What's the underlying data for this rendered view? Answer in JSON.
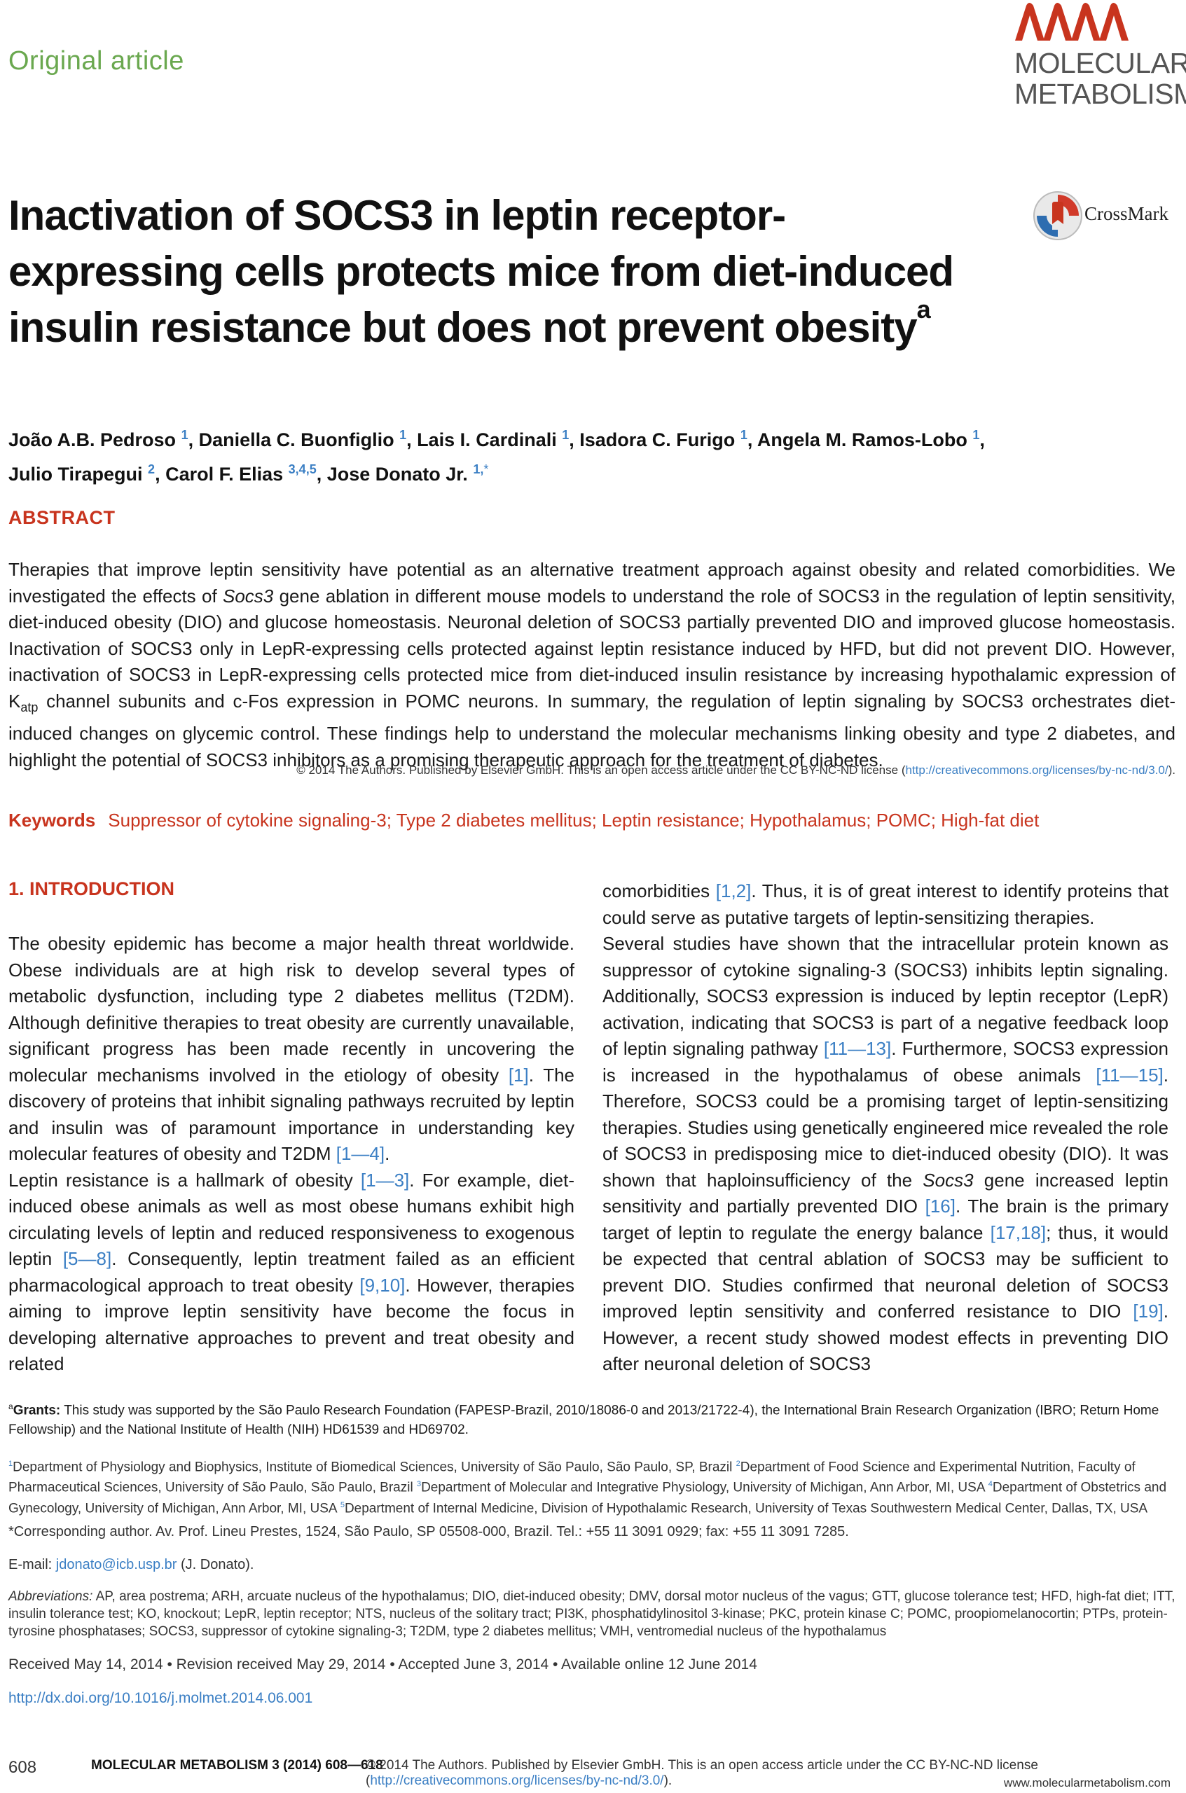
{
  "header": {
    "doc_type": "Original article",
    "journal_line1": "MOLECULAR",
    "journal_line2": "METABOLISM",
    "crossmark_label": "CrossMark",
    "colors": {
      "accent_red": "#c8341e",
      "link_blue": "#3b7fc4",
      "doc_type_green": "#6aa84f"
    }
  },
  "title": {
    "line1": "Inactivation of SOCS3 in leptin receptor-",
    "line2": "expressing cells protects mice from diet-induced",
    "line3": "insulin resistance but does not prevent obesity",
    "marker": "a"
  },
  "authors": [
    {
      "name": "João A.B. Pedroso",
      "aff": "1"
    },
    {
      "name": "Daniella C. Buonfiglio",
      "aff": "1"
    },
    {
      "name": "Lais I. Cardinali",
      "aff": "1"
    },
    {
      "name": "Isadora C. Furigo",
      "aff": "1"
    },
    {
      "name": "Angela M. Ramos-Lobo",
      "aff": "1"
    },
    {
      "name": "Julio Tirapegui",
      "aff": "2"
    },
    {
      "name": "Carol F. Elias",
      "aff": "3,4,5"
    },
    {
      "name": "Jose Donato Jr.",
      "aff": "1,"
    }
  ],
  "authors_star": "*",
  "abstract": {
    "heading": "ABSTRACT",
    "part1": "Therapies that improve leptin sensitivity have potential as an alternative treatment approach against obesity and related comorbidities. We investigated the effects of ",
    "italic1": "Socs3",
    "part2": " gene ablation in different mouse models to understand the role of SOCS3 in the regulation of leptin sensitivity, diet-induced obesity (DIO) and glucose homeostasis. Neuronal deletion of SOCS3 partially prevented DIO and improved glucose homeostasis. Inactivation of SOCS3 only in LepR-expressing cells protected against leptin resistance induced by HFD, but did not prevent DIO. However, inactivation of SOCS3 in LepR-expressing cells protected mice from diet-induced insulin resistance by increasing hypothalamic expression of K",
    "sub1": "atp",
    "part3": " channel subunits and c-Fos expression in POMC neurons. In summary, the regulation of leptin signaling by SOCS3 orchestrates diet-induced changes on glycemic control. These findings help to understand the molecular mechanisms linking obesity and type 2 diabetes, and highlight the potential of SOCS3 inhibitors as a promising therapeutic approach for the treatment of diabetes.",
    "license_prefix": "© 2014 The Authors. Published by Elsevier GmbH. This is an open access article under the CC BY-NC-ND license (",
    "license_link": "http://creativecommons.org/licenses/by-nc-nd/3.0/",
    "license_suffix": ")."
  },
  "keywords": {
    "label": "Keywords",
    "text": "Suppressor of cytokine signaling-3; Type 2 diabetes mellitus; Leptin resistance; Hypothalamus; POMC; High-fat diet"
  },
  "intro": {
    "heading": "1.  INTRODUCTION",
    "p1_a": "The obesity epidemic has become a major health threat worldwide. Obese individuals are at high risk to develop several types of metabolic dysfunction, including type 2 diabetes mellitus (T2DM). Although definitive therapies to treat obesity are currently unavailable, significant progress has been made recently in uncovering the molecular mechanisms involved in the etiology of obesity ",
    "p1_ref1": "[1]",
    "p1_b": ". The discovery of proteins that inhibit signaling pathways recruited by leptin and insulin was of paramount importance in understanding key molecular features of obesity and T2DM ",
    "p1_ref2": "[1—4]",
    "p1_c": ".",
    "p2_a": "Leptin resistance is a hallmark of obesity ",
    "p2_ref1": "[1—3]",
    "p2_b": ". For example, diet-induced obese animals as well as most obese humans exhibit high circulating levels of leptin and reduced responsiveness to exogenous leptin ",
    "p2_ref2": "[5—8]",
    "p2_c": ". Consequently, leptin treatment failed as an efficient pharmacological approach to treat obesity ",
    "p2_ref3": "[9,10]",
    "p2_d": ". However, therapies aiming to improve leptin sensitivity have become the focus in developing alternative approaches to prevent and treat obesity and related",
    "r1_a": "comorbidities ",
    "r1_ref1": "[1,2]",
    "r1_b": ". Thus, it is of great interest to identify proteins that could serve as putative targets of leptin-sensitizing therapies.",
    "r2_a": "Several studies have shown that the intracellular protein known as suppressor of cytokine signaling-3 (SOCS3) inhibits leptin signaling. Additionally, SOCS3 expression is induced by leptin receptor (LepR) activation, indicating that SOCS3 is part of a negative feedback loop of leptin signaling pathway ",
    "r2_ref1": "[11—13]",
    "r2_b": ". Furthermore, SOCS3 expression is increased in the hypothalamus of obese animals ",
    "r2_ref2": "[11—15]",
    "r2_c": ". Therefore, SOCS3 could be a promising target of leptin-sensitizing therapies. Studies using genetically engineered mice revealed the role of SOCS3 in predisposing mice to diet-induced obesity (DIO). It was shown that haploinsufficiency of the ",
    "r2_italic": "Socs3",
    "r2_d": " gene increased leptin sensitivity and partially prevented DIO ",
    "r2_ref3": "[16]",
    "r2_e": ". The brain is the primary target of leptin to regulate the energy balance ",
    "r2_ref4": "[17,18]",
    "r2_f": "; thus, it would be expected that central ablation of SOCS3 may be sufficient to prevent DIO. Studies confirmed that neuronal deletion of SOCS3 improved leptin sensitivity and conferred resistance to DIO ",
    "r2_ref5": "[19]",
    "r2_g": ". However, a recent study showed modest effects in preventing DIO after neuronal deletion of SOCS3"
  },
  "footnotes": {
    "grants_marker": "a",
    "grants_label": "Grants:",
    "grants_text": " This study was supported by the São Paulo Research Foundation (FAPESP-Brazil, 2010/18086-0 and 2013/21722-4), the International Brain Research Organization (IBRO; Return Home Fellowship) and the National Institute of Health (NIH) HD61539 and HD69702.",
    "aff1": "Department of Physiology and Biophysics, Institute of Biomedical Sciences, University of São Paulo, São Paulo, SP, Brazil ",
    "aff2": "Department of Food Science and Experimental Nutrition, Faculty of Pharmaceutical Sciences, University of São Paulo, São Paulo, Brazil ",
    "aff3": "Department of Molecular and Integrative Physiology, University of Michigan, Ann Arbor, MI, USA ",
    "aff4": "Department of Obstetrics and Gynecology, University of Michigan, Ann Arbor, MI, USA ",
    "aff5": "Department of Internal Medicine, Division of Hypothalamic Research, University of Texas Southwestern Medical Center, Dallas, TX, USA",
    "corresponding": "*Corresponding author. Av. Prof. Lineu Prestes, 1524, São Paulo, SP 05508-000, Brazil. Tel.: +55 11 3091 0929; fax: +55 11 3091 7285.",
    "email_label": "E-mail: ",
    "email": "jdonato@icb.usp.br",
    "email_suffix": " (J. Donato).",
    "abbrev_label": "Abbreviations:",
    "abbrev_text": " AP, area postrema; ARH, arcuate nucleus of the hypothalamus; DIO, diet-induced obesity; DMV, dorsal motor nucleus of the vagus; GTT, glucose tolerance test; HFD, high-fat diet; ITT, insulin tolerance test; KO, knockout; LepR, leptin receptor; NTS, nucleus of the solitary tract; PI3K, phosphatidylinositol 3-kinase; PKC, protein kinase C; POMC, proopiomelanocortin; PTPs, protein-tyrosine phosphatases; SOCS3, suppressor of cytokine signaling-3; T2DM, type 2 diabetes mellitus; VMH, ventromedial nucleus of the hypothalamus",
    "dates": "Received May 14, 2014 • Revision received May 29, 2014 • Accepted June 3, 2014 • Available online 12 June 2014",
    "doi": "http://dx.doi.org/10.1016/j.molmet.2014.06.001"
  },
  "footer": {
    "page": "608",
    "journal": "MOLECULAR METABOLISM 3 (2014) 608—618",
    "license_prefix": "© 2014 The Authors. Published by Elsevier GmbH. This is an open access article under the CC BY-NC-ND license (",
    "license_link": "http://creativecommons.org/licenses/by-nc-nd/3.0/",
    "license_suffix": ").",
    "site": "www.molecularmetabolism.com"
  }
}
